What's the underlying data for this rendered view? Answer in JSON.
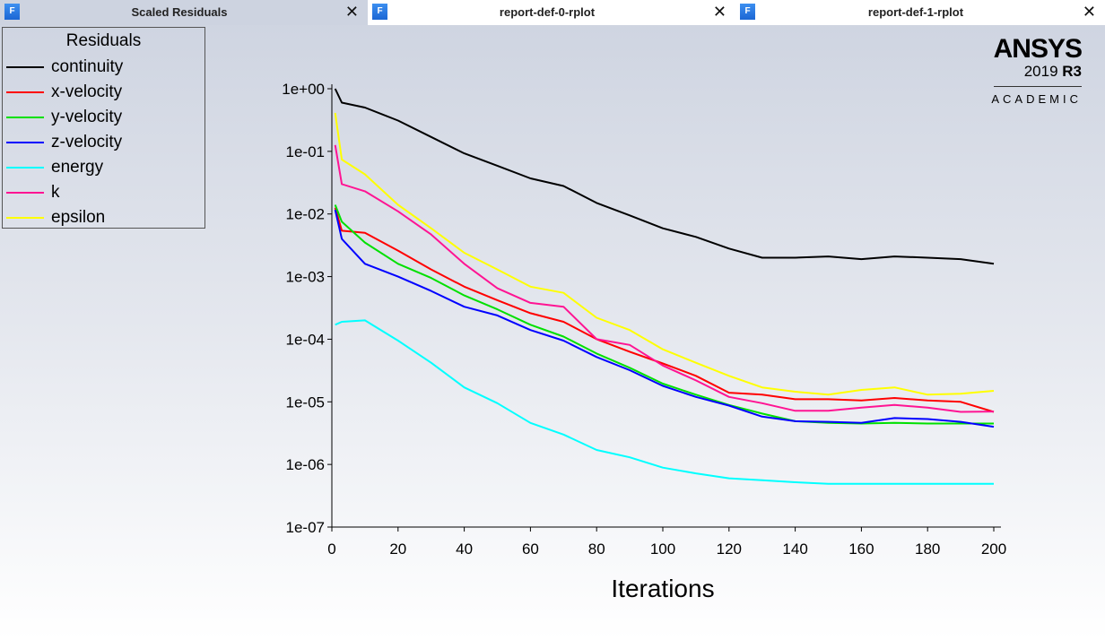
{
  "tabs": [
    {
      "label": "Scaled Residuals",
      "icon": "fluent-icon",
      "active": true
    },
    {
      "label": "report-def-0-rplot",
      "icon": "fluent-icon",
      "active": false
    },
    {
      "label": "report-def-1-rplot",
      "icon": "fluent-icon",
      "active": false
    }
  ],
  "tab_icon_letter": "F",
  "close_glyph": "✕",
  "logo": {
    "brand": "ANSYS",
    "version": "2019",
    "release": "R3",
    "edition": "ACADEMIC"
  },
  "chart_data": {
    "type": "line",
    "title": "Residuals",
    "xlabel": "Iterations",
    "ylabel": "",
    "yscale": "log",
    "xlim": [
      0,
      200
    ],
    "ylim": [
      1e-07,
      1
    ],
    "xticks": [
      "0",
      "20",
      "40",
      "60",
      "80",
      "100",
      "120",
      "140",
      "160",
      "180",
      "200"
    ],
    "yticks": [
      "1e+00",
      "1e-01",
      "1e-02",
      "1e-03",
      "1e-04",
      "1e-05",
      "1e-06",
      "1e-07"
    ],
    "legend_placement": "top-left",
    "x": [
      1,
      3,
      10,
      20,
      30,
      40,
      50,
      60,
      70,
      80,
      90,
      100,
      110,
      120,
      130,
      140,
      150,
      160,
      170,
      180,
      190,
      200
    ],
    "series": [
      {
        "name": "continuity",
        "color": "#000000",
        "values": [
          1.0,
          0.6,
          0.5,
          0.31,
          0.17,
          0.093,
          0.059,
          0.037,
          0.028,
          0.015,
          0.0095,
          0.0059,
          0.0043,
          0.0028,
          0.002,
          0.002,
          0.0021,
          0.0019,
          0.0021,
          0.002,
          0.0019,
          0.0016
        ]
      },
      {
        "name": "x-velocity",
        "color": "#ff0000",
        "values": [
          0.0126,
          0.0054,
          0.005,
          0.0026,
          0.0013,
          0.00069,
          0.00042,
          0.00026,
          0.00019,
          0.0001,
          6.3e-05,
          4.1e-05,
          2.6e-05,
          1.4e-05,
          1.3e-05,
          1.1e-05,
          1.1e-05,
          1.05e-05,
          1.15e-05,
          1.05e-05,
          1e-05,
          6.9e-06
        ]
      },
      {
        "name": "y-velocity",
        "color": "#00e000",
        "values": [
          0.014,
          0.0075,
          0.0035,
          0.0016,
          0.00095,
          0.0005,
          0.0003,
          0.00017,
          0.00011,
          5.9e-05,
          3.5e-05,
          1.95e-05,
          1.3e-05,
          8.9e-06,
          6.5e-06,
          4.9e-06,
          4.6e-06,
          4.5e-06,
          4.6e-06,
          4.5e-06,
          4.5e-06,
          4.5e-06
        ]
      },
      {
        "name": "z-velocity",
        "color": "#0000ff",
        "values": [
          0.0117,
          0.004,
          0.0016,
          0.001,
          0.00059,
          0.00033,
          0.00024,
          0.00014,
          9.5e-05,
          5.2e-05,
          3.2e-05,
          1.8e-05,
          1.2e-05,
          8.7e-06,
          5.8e-06,
          4.9e-06,
          4.8e-06,
          4.6e-06,
          5.5e-06,
          5.3e-06,
          4.8e-06,
          4e-06
        ]
      },
      {
        "name": "energy",
        "color": "#00ffff",
        "values": [
          0.00017,
          0.00019,
          0.0002,
          9.5e-05,
          4.2e-05,
          1.7e-05,
          9.5e-06,
          4.6e-06,
          3e-06,
          1.7e-06,
          1.3e-06,
          8.9e-07,
          7.2e-07,
          6e-07,
          5.6e-07,
          5.2e-07,
          4.9e-07,
          4.9e-07,
          4.9e-07,
          4.9e-07,
          4.9e-07,
          4.9e-07
        ]
      },
      {
        "name": "k",
        "color": "#ff1493",
        "values": [
          0.126,
          0.03,
          0.023,
          0.011,
          0.0047,
          0.0016,
          0.00065,
          0.00038,
          0.00033,
          0.0001,
          8.1e-05,
          3.8e-05,
          2.2e-05,
          1.2e-05,
          9.5e-06,
          7.2e-06,
          7.2e-06,
          8.1e-06,
          8.9e-06,
          8.1e-06,
          6.9e-06,
          7e-06
        ]
      },
      {
        "name": "epsilon",
        "color": "#ffff00",
        "values": [
          0.41,
          0.074,
          0.043,
          0.014,
          0.0059,
          0.0024,
          0.0013,
          0.00069,
          0.00055,
          0.00022,
          0.00014,
          6.9e-05,
          4.2e-05,
          2.6e-05,
          1.7e-05,
          1.45e-05,
          1.3e-05,
          1.55e-05,
          1.7e-05,
          1.3e-05,
          1.35e-05,
          1.5e-05
        ]
      }
    ]
  }
}
